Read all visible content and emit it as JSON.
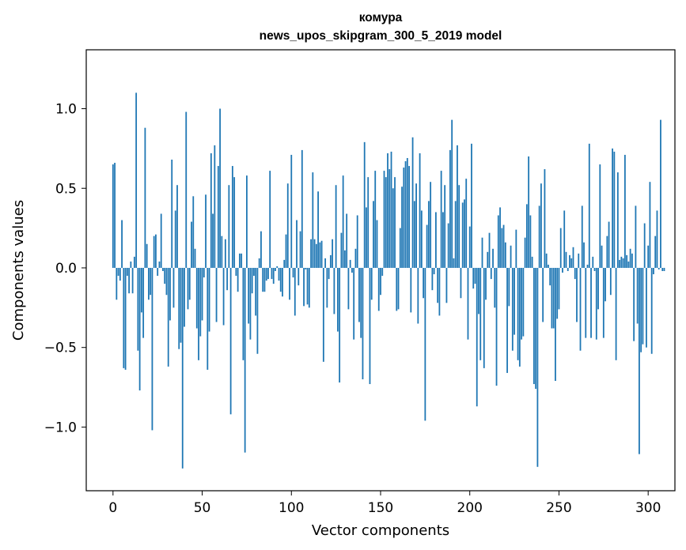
{
  "chart_data": {
    "type": "bar",
    "title_line1": "комура",
    "title_line2": "news_upos_skipgram_300_5_2019 model",
    "xlabel": "Vector components",
    "ylabel": "Components values",
    "xlim": [
      -15,
      315
    ],
    "ylim": [
      -1.4,
      1.37
    ],
    "x_ticks": [
      0,
      50,
      100,
      150,
      200,
      250,
      300
    ],
    "x_tick_labels": [
      "0",
      "50",
      "100",
      "150",
      "200",
      "250",
      "300"
    ],
    "y_ticks": [
      -1.0,
      -0.5,
      0.0,
      0.5,
      1.0
    ],
    "y_tick_labels": [
      "−1.0",
      "−0.5",
      "0.0",
      "0.5",
      "1.0"
    ],
    "bar_color": "#1f77b4",
    "values": [
      0.65,
      0.66,
      -0.2,
      -0.05,
      -0.08,
      0.3,
      -0.63,
      -0.64,
      -0.05,
      -0.16,
      0.04,
      -0.16,
      0.07,
      1.1,
      -0.52,
      -0.77,
      -0.28,
      -0.44,
      0.88,
      0.15,
      -0.2,
      -0.17,
      -1.02,
      0.2,
      0.21,
      -0.05,
      0.04,
      0.34,
      -0.02,
      -0.1,
      -0.17,
      -0.62,
      -0.33,
      0.68,
      -0.25,
      0.36,
      0.52,
      -0.51,
      -0.47,
      -1.26,
      -0.37,
      0.98,
      -0.26,
      -0.2,
      0.29,
      0.45,
      0.12,
      -0.38,
      -0.58,
      -0.43,
      -0.33,
      -0.06,
      0.46,
      -0.64,
      -0.4,
      0.72,
      0.34,
      0.77,
      -0.34,
      0.64,
      1.0,
      0.2,
      -0.36,
      0.18,
      -0.14,
      0.52,
      -0.92,
      0.64,
      0.57,
      -0.05,
      -0.15,
      0.09,
      0.09,
      -0.58,
      -1.16,
      0.58,
      -0.35,
      -0.45,
      -0.16,
      -0.05,
      -0.3,
      -0.54,
      0.06,
      0.23,
      -0.15,
      -0.15,
      -0.08,
      -0.07,
      0.61,
      -0.07,
      -0.1,
      -0.02,
      0.01,
      -0.08,
      -0.15,
      -0.18,
      0.05,
      0.21,
      0.53,
      -0.2,
      0.71,
      -0.06,
      -0.3,
      0.3,
      -0.11,
      0.23,
      0.74,
      -0.24,
      -0.01,
      -0.23,
      -0.25,
      0.18,
      0.6,
      0.18,
      0.15,
      0.48,
      0.16,
      0.17,
      -0.59,
      0.06,
      -0.25,
      -0.07,
      0.08,
      0.18,
      -0.29,
      0.52,
      -0.4,
      -0.72,
      0.22,
      0.58,
      0.11,
      0.34,
      -0.26,
      0.05,
      -0.03,
      -0.45,
      0.12,
      0.33,
      -0.34,
      -0.44,
      -0.7,
      0.79,
      0.38,
      0.57,
      -0.73,
      -0.2,
      0.42,
      0.61,
      0.3,
      -0.27,
      -0.17,
      -0.05,
      0.61,
      0.57,
      0.72,
      0.62,
      0.73,
      0.5,
      0.57,
      -0.27,
      -0.26,
      0.25,
      0.51,
      0.63,
      0.67,
      0.69,
      0.64,
      -0.28,
      0.82,
      0.42,
      0.53,
      -0.35,
      0.72,
      0.36,
      -0.19,
      -0.96,
      0.27,
      0.42,
      0.54,
      -0.14,
      -0.04,
      0.35,
      -0.22,
      -0.3,
      0.61,
      0.35,
      0.52,
      -0.22,
      0.28,
      0.74,
      0.93,
      0.06,
      0.42,
      0.77,
      0.52,
      -0.19,
      0.41,
      0.43,
      0.56,
      -0.45,
      0.26,
      0.78,
      -0.13,
      -0.1,
      -0.87,
      -0.29,
      -0.58,
      0.19,
      -0.63,
      -0.2,
      0.1,
      0.22,
      -0.07,
      0.12,
      -0.25,
      -0.74,
      0.33,
      0.38,
      0.25,
      0.27,
      0.16,
      -0.66,
      -0.24,
      0.14,
      -0.52,
      -0.42,
      0.24,
      -0.58,
      -0.62,
      -0.45,
      -0.43,
      0.19,
      0.4,
      0.7,
      0.33,
      0.07,
      -0.73,
      -0.76,
      -1.25,
      0.39,
      0.53,
      -0.34,
      0.62,
      0.09,
      0.02,
      -0.11,
      -0.38,
      -0.38,
      -0.71,
      -0.32,
      -0.26,
      0.25,
      -0.03,
      0.36,
      0.1,
      -0.02,
      0.08,
      0.06,
      0.13,
      -0.07,
      -0.34,
      0.09,
      -0.52,
      0.39,
      0.16,
      -0.44,
      0.02,
      0.78,
      -0.44,
      0.07,
      -0.02,
      -0.45,
      -0.26,
      0.65,
      0.14,
      -0.44,
      -0.21,
      0.2,
      0.29,
      -0.17,
      0.75,
      0.73,
      -0.58,
      0.6,
      0.05,
      0.07,
      0.06,
      0.71,
      0.08,
      0.04,
      0.12,
      0.09,
      -0.46,
      0.39,
      -0.35,
      -1.17,
      -0.53,
      -0.48,
      0.28,
      -0.5,
      0.14,
      0.54,
      -0.54,
      -0.04,
      0.2,
      0.36,
      -0.01,
      0.93,
      -0.02,
      -0.02
    ]
  }
}
